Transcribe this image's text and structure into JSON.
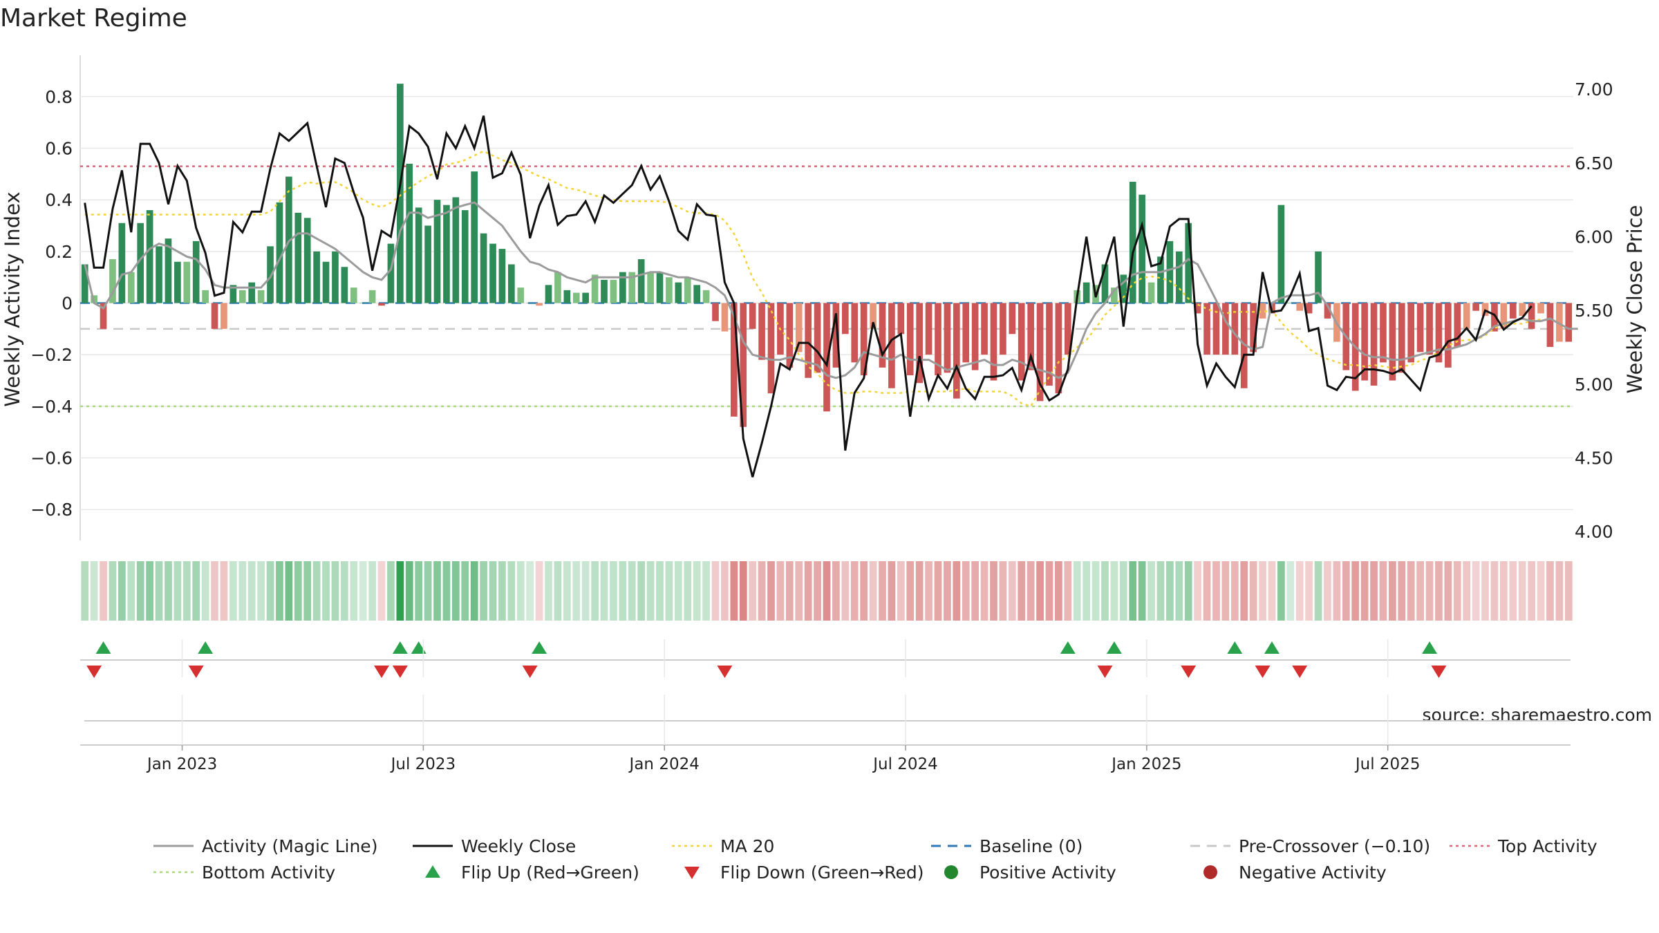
{
  "chart_data": {
    "type": "bar+line",
    "title": "Market Regime",
    "source": "source: sharemaestro.com",
    "left_axis": {
      "label": "Weekly Activity Index",
      "range": [
        -0.92,
        0.92
      ],
      "ticks": [
        0.8,
        0.6,
        0.4,
        0.2,
        0,
        -0.2,
        -0.4,
        -0.6,
        -0.8
      ],
      "tick_labels": [
        "0.8",
        "0.6",
        "0.4",
        "0.2",
        "0",
        "−0.2",
        "−0.4",
        "−0.6",
        "−0.8"
      ]
    },
    "right_axis": {
      "label": "Weekly Close Price",
      "range": [
        3.94,
        7.16
      ],
      "ticks": [
        7.0,
        6.5,
        6.0,
        5.5,
        5.0,
        4.5,
        4.0
      ],
      "tick_labels": [
        "7.00",
        "6.50",
        "6.00",
        "5.50",
        "5.00",
        "4.50",
        "4.00"
      ]
    },
    "x_axis": {
      "tick_index": [
        11,
        37,
        63,
        89,
        115,
        141
      ],
      "tick_labels": [
        "Jan 2023",
        "Jul 2023",
        "Jan 2024",
        "Jul 2024",
        "Jan 2025",
        "Jul 2025"
      ]
    },
    "reference_lines": {
      "top_activity": 0.53,
      "bottom_activity": -0.4,
      "pre_crossover": -0.1,
      "baseline": 0
    },
    "activity_bars": [
      0.15,
      0.03,
      -0.1,
      0.17,
      0.31,
      0.12,
      0.31,
      0.36,
      0.22,
      0.25,
      0.16,
      0.16,
      0.24,
      0.05,
      -0.1,
      -0.1,
      0.07,
      0.05,
      0.08,
      0.05,
      0.22,
      0.39,
      0.49,
      0.35,
      0.33,
      0.2,
      0.16,
      0.2,
      0.14,
      0.06,
      0.0,
      0.05,
      -0.01,
      0.23,
      0.85,
      0.54,
      0.37,
      0.3,
      0.4,
      0.38,
      0.41,
      0.36,
      0.51,
      0.27,
      0.23,
      0.21,
      0.15,
      0.06,
      0.0,
      -0.01,
      0.07,
      0.12,
      0.05,
      0.04,
      0.04,
      0.11,
      0.09,
      0.09,
      0.12,
      0.12,
      0.17,
      0.12,
      0.12,
      0.1,
      0.08,
      0.1,
      0.07,
      0.05,
      -0.07,
      -0.11,
      -0.44,
      -0.48,
      -0.1,
      -0.22,
      -0.35,
      -0.2,
      -0.25,
      -0.19,
      -0.29,
      -0.27,
      -0.42,
      -0.25,
      -0.12,
      -0.23,
      -0.28,
      -0.1,
      -0.25,
      -0.33,
      -0.12,
      -0.28,
      -0.31,
      -0.2,
      -0.28,
      -0.27,
      -0.37,
      -0.23,
      -0.26,
      -0.2,
      -0.3,
      -0.2,
      -0.12,
      -0.3,
      -0.26,
      -0.38,
      -0.32,
      -0.35,
      -0.2,
      0.05,
      0.08,
      0.07,
      0.15,
      0.06,
      0.11,
      0.47,
      0.42,
      0.08,
      0.18,
      0.24,
      0.2,
      0.31,
      -0.04,
      -0.2,
      -0.2,
      -0.2,
      -0.2,
      -0.33,
      -0.19,
      -0.06,
      -0.04,
      0.38,
      0.0,
      -0.03,
      -0.04,
      0.2,
      -0.06,
      -0.15,
      -0.26,
      -0.34,
      -0.3,
      -0.32,
      -0.23,
      -0.3,
      -0.27,
      -0.23,
      -0.19,
      -0.2,
      -0.23,
      -0.25,
      -0.17,
      -0.1,
      -0.03,
      -0.05,
      -0.11,
      -0.1,
      -0.06,
      -0.05,
      -0.1,
      -0.04,
      -0.17,
      -0.15,
      -0.15
    ],
    "magic_line": [
      0.15,
      0.0,
      -0.02,
      0.04,
      0.11,
      0.12,
      0.17,
      0.21,
      0.23,
      0.22,
      0.2,
      0.18,
      0.17,
      0.13,
      0.07,
      0.06,
      0.06,
      0.06,
      0.06,
      0.06,
      0.1,
      0.17,
      0.24,
      0.27,
      0.27,
      0.25,
      0.23,
      0.21,
      0.18,
      0.15,
      0.12,
      0.1,
      0.09,
      0.13,
      0.28,
      0.35,
      0.35,
      0.33,
      0.34,
      0.35,
      0.37,
      0.38,
      0.39,
      0.36,
      0.33,
      0.3,
      0.25,
      0.2,
      0.16,
      0.15,
      0.13,
      0.12,
      0.1,
      0.09,
      0.08,
      0.1,
      0.1,
      0.1,
      0.1,
      0.1,
      0.11,
      0.12,
      0.12,
      0.11,
      0.1,
      0.1,
      0.09,
      0.08,
      0.06,
      0.03,
      -0.05,
      -0.15,
      -0.2,
      -0.21,
      -0.22,
      -0.22,
      -0.21,
      -0.22,
      -0.23,
      -0.24,
      -0.28,
      -0.29,
      -0.28,
      -0.25,
      -0.19,
      -0.2,
      -0.21,
      -0.22,
      -0.2,
      -0.22,
      -0.22,
      -0.22,
      -0.24,
      -0.26,
      -0.25,
      -0.24,
      -0.23,
      -0.22,
      -0.24,
      -0.24,
      -0.22,
      -0.23,
      -0.25,
      -0.26,
      -0.27,
      -0.29,
      -0.27,
      -0.19,
      -0.1,
      -0.04,
      0.0,
      0.05,
      0.08,
      0.11,
      0.12,
      0.12,
      0.12,
      0.13,
      0.14,
      0.17,
      0.15,
      0.08,
      0.01,
      -0.07,
      -0.12,
      -0.16,
      -0.18,
      -0.17,
      0.0,
      0.02,
      0.03,
      0.03,
      0.03,
      0.04,
      -0.01,
      -0.08,
      -0.13,
      -0.17,
      -0.2,
      -0.21,
      -0.21,
      -0.22,
      -0.22,
      -0.21,
      -0.2,
      -0.19,
      -0.18,
      -0.18,
      -0.17,
      -0.16,
      -0.14,
      -0.12,
      -0.09,
      -0.08,
      -0.07,
      -0.06,
      -0.07,
      -0.07,
      -0.06,
      -0.08,
      -0.1,
      -0.1
    ],
    "weekly_close": [
      6.23,
      5.79,
      5.79,
      6.19,
      6.45,
      6.03,
      6.63,
      6.63,
      6.5,
      6.22,
      6.48,
      6.38,
      6.06,
      5.89,
      5.6,
      5.62,
      6.1,
      6.03,
      6.17,
      6.17,
      6.46,
      6.7,
      6.65,
      6.71,
      6.77,
      6.48,
      6.2,
      6.53,
      6.5,
      6.3,
      6.13,
      5.77,
      6.04,
      6.0,
      6.35,
      6.75,
      6.7,
      6.61,
      6.39,
      6.7,
      6.6,
      6.75,
      6.6,
      6.82,
      6.4,
      6.43,
      6.57,
      6.42,
      5.99,
      6.21,
      6.35,
      6.08,
      6.14,
      6.15,
      6.24,
      6.1,
      6.28,
      6.23,
      6.29,
      6.35,
      6.48,
      6.32,
      6.41,
      6.24,
      6.04,
      5.98,
      6.22,
      6.15,
      6.14,
      5.69,
      5.55,
      4.63,
      4.37,
      4.6,
      4.85,
      5.14,
      5.1,
      5.28,
      5.28,
      5.22,
      5.13,
      5.48,
      4.55,
      4.94,
      5.04,
      5.42,
      5.2,
      5.3,
      5.34,
      4.78,
      5.19,
      4.9,
      5.06,
      4.97,
      5.12,
      4.97,
      4.9,
      5.05,
      5.05,
      5.06,
      5.11,
      4.96,
      5.19,
      5.0,
      4.89,
      4.93,
      5.1,
      5.59,
      6.0,
      5.59,
      5.79,
      6.0,
      5.39,
      5.89,
      6.08,
      5.8,
      5.82,
      6.07,
      6.12,
      6.12,
      5.27,
      4.99,
      5.14,
      5.05,
      4.98,
      5.2,
      5.2,
      5.76,
      5.49,
      5.5,
      5.6,
      5.75,
      5.36,
      5.38,
      4.99,
      4.96,
      5.05,
      5.04,
      5.1,
      5.1,
      5.09,
      5.07,
      5.1,
      5.03,
      4.96,
      5.18,
      5.2,
      5.29,
      5.31,
      5.38,
      5.3,
      5.5,
      5.47,
      5.37,
      5.42,
      5.45,
      5.53
    ],
    "ma20": [
      6.15,
      6.15,
      6.15,
      6.15,
      6.15,
      6.15,
      6.15,
      6.15,
      6.15,
      6.15,
      6.15,
      6.15,
      6.15,
      6.15,
      6.15,
      6.15,
      6.15,
      6.15,
      6.15,
      6.15,
      6.17,
      6.24,
      6.31,
      6.34,
      6.37,
      6.36,
      6.37,
      6.37,
      6.34,
      6.3,
      6.25,
      6.22,
      6.2,
      6.23,
      6.28,
      6.33,
      6.37,
      6.41,
      6.44,
      6.49,
      6.5,
      6.52,
      6.55,
      6.58,
      6.55,
      6.52,
      6.5,
      6.47,
      6.44,
      6.41,
      6.39,
      6.36,
      6.33,
      6.32,
      6.3,
      6.28,
      6.26,
      6.25,
      6.24,
      6.24,
      6.24,
      6.24,
      6.24,
      6.23,
      6.2,
      6.17,
      6.16,
      6.16,
      6.15,
      6.11,
      6.02,
      5.88,
      5.72,
      5.62,
      5.5,
      5.37,
      5.3,
      5.2,
      5.12,
      5.07,
      5.0,
      4.96,
      4.94,
      4.94,
      4.95,
      4.95,
      4.94,
      4.94,
      4.94,
      4.95,
      4.95,
      4.95,
      4.95,
      4.95,
      4.96,
      4.97,
      4.95,
      4.95,
      4.95,
      4.95,
      4.92,
      4.87,
      4.85,
      4.96,
      5.05,
      5.15,
      5.19,
      5.25,
      5.3,
      5.38,
      5.47,
      5.53,
      5.59,
      5.68,
      5.72,
      5.73,
      5.72,
      5.7,
      5.65,
      5.58,
      5.54,
      5.51,
      5.49,
      5.48,
      5.49,
      5.49,
      5.49,
      5.49,
      5.5,
      5.42,
      5.35,
      5.3,
      5.24,
      5.2,
      5.17,
      5.15,
      5.13,
      5.13,
      5.12,
      5.13,
      5.12,
      5.11,
      5.12,
      5.13,
      5.16,
      5.18,
      5.22,
      5.26,
      5.29,
      5.3,
      5.3,
      5.33,
      5.38,
      5.4,
      5.41,
      5.41,
      5.43,
      5.44
    ],
    "flip_up_index": [
      2,
      13,
      34,
      36,
      49,
      106,
      111,
      124,
      128,
      145
    ],
    "flip_down_index": [
      1,
      12,
      32,
      34,
      48,
      69,
      110,
      119,
      127,
      131,
      146
    ],
    "legend": [
      {
        "label": "Activity (Magic Line)",
        "symbol": "line",
        "color": "#9b9b9b"
      },
      {
        "label": "Weekly Close",
        "symbol": "line",
        "color": "#111111"
      },
      {
        "label": "MA 20",
        "symbol": "dotted",
        "color": "#f2d43a"
      },
      {
        "label": "Baseline (0)",
        "symbol": "dashed",
        "color": "#2e79b5"
      },
      {
        "label": "Pre-Crossover (−0.10)",
        "symbol": "dashed",
        "color": "#c8c8c8"
      },
      {
        "label": "Top Activity",
        "symbol": "dotted",
        "color": "#e06377"
      },
      {
        "label": "Bottom Activity",
        "symbol": "dotted",
        "color": "#a7d97c"
      },
      {
        "label": "Flip Up (Red→Green)",
        "symbol": "triangle-up",
        "color": "#2aa24b"
      },
      {
        "label": "Flip Down (Green→Red)",
        "symbol": "triangle-down",
        "color": "#d62f2f"
      },
      {
        "label": "Positive Activity",
        "symbol": "circle",
        "color": "#21862e"
      },
      {
        "label": "Negative Activity",
        "symbol": "circle",
        "color": "#b02a2a"
      }
    ],
    "colors": {
      "pos_dark": "#2e8b57",
      "pos_light": "#7fbf7f",
      "neg_dark": "#cc5555",
      "neg_light": "#e8967a",
      "grid": "#e8e8e8"
    }
  }
}
